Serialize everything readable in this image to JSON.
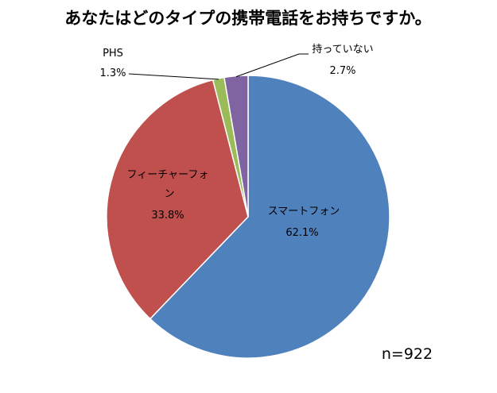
{
  "chart_data": {
    "type": "pie",
    "title": "あなたはどのタイプの携帯電話をお持ちですか。",
    "note": "n=922",
    "slices": [
      {
        "label": "スマートフォン",
        "value": 62.1,
        "value_label": "62.1%",
        "color": "#4f81bd"
      },
      {
        "label": "フィーチャーフォン",
        "value": 33.8,
        "value_label": "33.8%",
        "color": "#c0504d"
      },
      {
        "label": "PHS",
        "value": 1.3,
        "value_label": "1.3%",
        "color": "#9bbb59"
      },
      {
        "label": "持っていない",
        "value": 2.7,
        "value_label": "2.7%",
        "color": "#8064a2"
      }
    ]
  }
}
